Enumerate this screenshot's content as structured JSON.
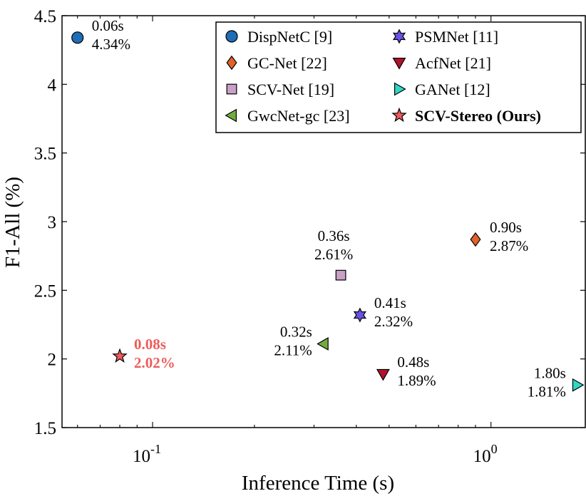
{
  "chart_data": {
    "type": "scatter",
    "title": "",
    "xlabel": "Inference Time (s)",
    "ylabel": "F1-All (%)",
    "xscale": "log",
    "xlim": [
      0.054,
      1.9
    ],
    "ylim": [
      1.5,
      4.5
    ],
    "xticks": [
      {
        "value": 0.1,
        "base": "10",
        "exp": "-1"
      },
      {
        "value": 1.0,
        "base": "10",
        "exp": "0"
      }
    ],
    "yticks": [
      {
        "value": 1.5,
        "label": "1.5"
      },
      {
        "value": 2,
        "label": "2"
      },
      {
        "value": 2.5,
        "label": "2.5"
      },
      {
        "value": 3,
        "label": "3"
      },
      {
        "value": 3.5,
        "label": "3.5"
      },
      {
        "value": 4,
        "label": "4"
      },
      {
        "value": 4.5,
        "label": "4.5"
      }
    ],
    "legend_position": "top-right",
    "points": [
      {
        "name": "DispNetC [9]",
        "x": 0.06,
        "y": 4.34,
        "marker": "circle",
        "color": "#1f6db5",
        "time_label": "0.06s",
        "value_label": "4.34%",
        "label_side": "right",
        "bold": false
      },
      {
        "name": "GC-Net [22]",
        "x": 0.9,
        "y": 2.87,
        "marker": "diamond",
        "color": "#e0622a",
        "time_label": "0.90s",
        "value_label": "2.87%",
        "label_side": "right",
        "bold": false
      },
      {
        "name": "SCV-Net [19]",
        "x": 0.36,
        "y": 2.61,
        "marker": "square",
        "color": "#c9a0c6",
        "time_label": "0.36s",
        "value_label": "2.61%",
        "label_side": "above",
        "bold": false
      },
      {
        "name": "GwcNet-gc [23]",
        "x": 0.32,
        "y": 2.11,
        "marker": "triangle-left",
        "color": "#72ac3f",
        "time_label": "0.32s",
        "value_label": "2.11%",
        "label_side": "left",
        "bold": false
      },
      {
        "name": "PSMNet [11]",
        "x": 0.41,
        "y": 2.32,
        "marker": "hexagram",
        "color": "#6b52e6",
        "time_label": "0.41s",
        "value_label": "2.32%",
        "label_side": "right",
        "bold": false
      },
      {
        "name": "AcfNet [21]",
        "x": 0.48,
        "y": 1.89,
        "marker": "triangle-down",
        "color": "#b0132b",
        "time_label": "0.48s",
        "value_label": "1.89%",
        "label_side": "right",
        "bold": false
      },
      {
        "name": "GANet [12]",
        "x": 1.8,
        "y": 1.81,
        "marker": "triangle-right",
        "color": "#2fd6c6",
        "time_label": "1.80s",
        "value_label": "1.81%",
        "label_side": "left",
        "bold": false
      },
      {
        "name": "SCV-Stereo (Ours)",
        "x": 0.08,
        "y": 2.02,
        "marker": "star",
        "color": "#ef5b5b",
        "time_label": "0.08s",
        "value_label": "2.02%",
        "label_side": "right",
        "bold": true
      }
    ],
    "legend_order": [
      0,
      4,
      1,
      5,
      2,
      6,
      3,
      7
    ]
  }
}
